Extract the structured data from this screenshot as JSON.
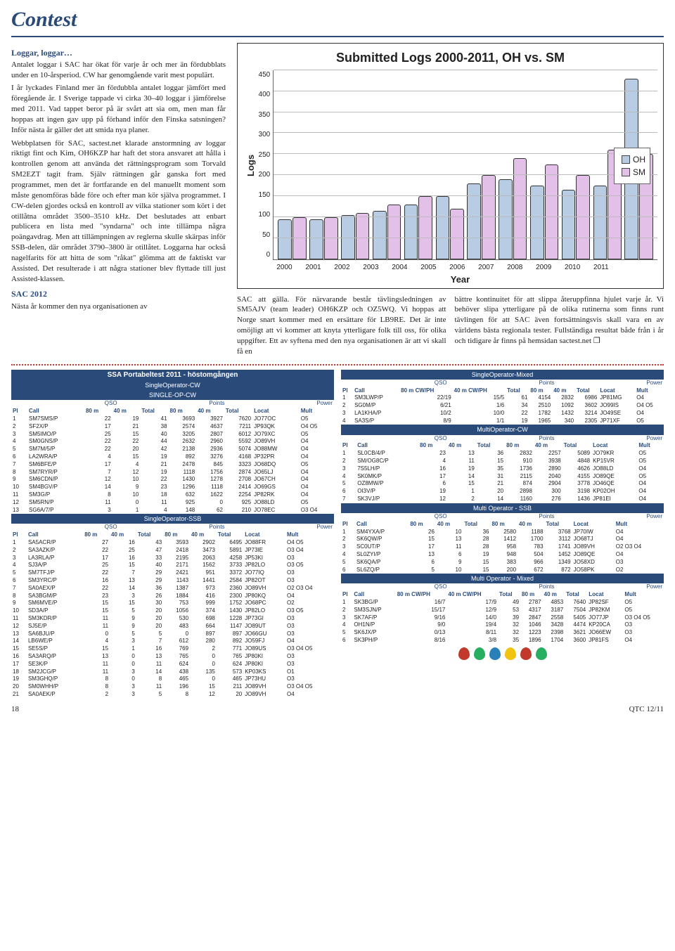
{
  "section_title": "Contest",
  "article": {
    "h1": "Loggar, loggar…",
    "p1": "Antalet loggar i SAC har ökat för varje år och mer än fördubblats under en 10-årsperiod. CW har genomgående varit mest populärt.",
    "p2": "I år lyckades Finland mer än fördubbla antalet loggar jämfört med föregående år. I Sverige tappade vi cirka 30–40 loggar i jämförelse med 2011. Vad tappet beror på är svårt att sia om, men man får hoppas att ingen gav upp på förhand inför den Finska satsningen? Inför nästa år gäller det att smida nya planer.",
    "p3": "Webbplatsen för SAC, sactest.net klarade anstormning av loggar riktigt fint och Kim, OH6KZP har haft det stora ansvaret att hålla i kontrollen genom att använda det rättningsprogram som Torvald SM2EZT tagit fram. Själv rättningen går ganska fort med programmet, men det är fortfarande en del manuellt moment som måste genomföras både före och efter man kör själva programmet. I CW-delen gjordes också en kontroll av vilka stationer som kört i det otillåtna området 3500–3510 kHz. Det beslutades att enbart publicera en lista med \"syndarna\" och inte tillämpa några poängavdrag. Men att tillämpningen av reglerna skulle skärpas inför SSB-delen, där området 3790–3800 är otillåtet. Loggarna har också nagelfarits för att hitta de som \"råkat\" glömma att de faktiskt var Assisted. Det resulterade i att några stationer blev flyttade till just Assisted-klassen.",
    "h2": "SAC 2012",
    "p4": "Nästa år kommer den nya organisationen av",
    "col_mid": "SAC att gälla. För närvarande består tävlingsledningen av SM5AJV (team leader) OH6KZP och OZ5WQ. Vi hoppas att Norge snart kommer med en ersättare för LB9RE. Det är inte omöjligt att vi kommer att knyta ytterligare folk till oss, för olika uppgifter. Ett av syftena med den nya organisationen är att vi skall få en",
    "col_right": "bättre kontinuitet för att slippa återuppfinna hjulet varje år. Vi behöver slipa ytterligare på de olika rutinerna som finns runt tävlingen för att SAC även fortsättningsvis skall vara en av världens bästa regionala tester.\n\nFullständiga resultat både från i år och tidigare år finns på hemsidan sactest.net ❐"
  },
  "chart": {
    "title": "Submitted Logs 2000-2011, OH vs. SM",
    "ylabel": "Logs",
    "xlabel": "Year",
    "ymax": 450,
    "ytick_step": 50,
    "yticks": [
      "0",
      "50",
      "100",
      "150",
      "200",
      "250",
      "300",
      "350",
      "400",
      "450"
    ],
    "years": [
      "2000",
      "2001",
      "2002",
      "2003",
      "2004",
      "2005",
      "2006",
      "2007",
      "2008",
      "2009",
      "2010",
      "2011"
    ],
    "series": {
      "OH": {
        "color": "#b8cce4",
        "values": [
          95,
          95,
          105,
          115,
          130,
          150,
          180,
          190,
          175,
          165,
          175,
          430
        ]
      },
      "SM": {
        "color": "#e2c0e8",
        "values": [
          100,
          100,
          110,
          130,
          150,
          120,
          200,
          240,
          225,
          200,
          260,
          250
        ]
      }
    },
    "legend": [
      {
        "label": "OH",
        "color": "#b8cce4"
      },
      {
        "label": "SM",
        "color": "#e2c0e8"
      }
    ],
    "grid_color": "#bbbbbb",
    "border_color": "#333333"
  },
  "tables": {
    "header_main": "SSA Portabeltest 2011 - höstomgången",
    "sub_socw": "SingleOperator-CW",
    "sub_single": "SINGLE-OP-CW",
    "cols_cw": {
      "qso": "QSO",
      "pts": "Points",
      "pow": "Power"
    },
    "colnames": [
      "Pl",
      "Call",
      "80 m",
      "40 m",
      "Total",
      "80 m",
      "40 m",
      "Total",
      "Locat",
      "Mult"
    ],
    "cw_rows": [
      [
        "1",
        "SM7SMS/P",
        "22",
        "19",
        "41",
        "3693",
        "3927",
        "7620",
        "JO77OC",
        "O5"
      ],
      [
        "2",
        "SF2X/P",
        "17",
        "21",
        "38",
        "2574",
        "4637",
        "7211",
        "JP93QK",
        "O4 O5"
      ],
      [
        "3",
        "SM5IMO/P",
        "25",
        "15",
        "40",
        "3205",
        "2807",
        "6012",
        "JO79XC",
        "O5"
      ],
      [
        "4",
        "SM0GNS/P",
        "22",
        "22",
        "44",
        "2632",
        "2960",
        "5592",
        "JO89VH",
        "O4"
      ],
      [
        "5",
        "SM7M/5/P",
        "22",
        "20",
        "42",
        "2138",
        "2936",
        "5074",
        "JO88MW",
        "O4"
      ],
      [
        "6",
        "LA2WRA/P",
        "4",
        "15",
        "19",
        "892",
        "3276",
        "4168",
        "JP32PR",
        "O4"
      ],
      [
        "7",
        "SM6BFE/P",
        "17",
        "4",
        "21",
        "2478",
        "845",
        "3323",
        "JO68DQ",
        "O5"
      ],
      [
        "8",
        "SM7RYR/P",
        "7",
        "12",
        "19",
        "1118",
        "1756",
        "2874",
        "JO65LJ",
        "O4"
      ],
      [
        "9",
        "SM6CDN/P",
        "12",
        "10",
        "22",
        "1430",
        "1278",
        "2708",
        "JO67CH",
        "O4"
      ],
      [
        "10",
        "SM4BGV/P",
        "14",
        "9",
        "23",
        "1296",
        "1118",
        "2414",
        "JO69GS",
        "O4"
      ],
      [
        "11",
        "SM3G/P",
        "8",
        "10",
        "18",
        "632",
        "1622",
        "2254",
        "JP82RK",
        "O4"
      ],
      [
        "12",
        "SM5RN/P",
        "11",
        "0",
        "11",
        "925",
        "0",
        "925",
        "JO88LD",
        "O5"
      ],
      [
        "13",
        "SG6A/7/P",
        "3",
        "1",
        "4",
        "148",
        "62",
        "210",
        "JO78EC",
        "O3 O4"
      ]
    ],
    "sub_sossb": "SingleOperator-SSB",
    "ssb_rows": [
      [
        "1",
        "SA5ACR/P",
        "27",
        "16",
        "43",
        "3593",
        "2902",
        "6495",
        "JO88FR",
        "O4 O5"
      ],
      [
        "2",
        "SA3AZK/P",
        "22",
        "25",
        "47",
        "2418",
        "3473",
        "5891",
        "JP73IE",
        "O3 O4"
      ],
      [
        "3",
        "LA3RLA/P",
        "17",
        "16",
        "33",
        "2195",
        "2063",
        "4258",
        "JP53KI",
        "O3"
      ],
      [
        "4",
        "SJ3A/P",
        "25",
        "15",
        "40",
        "2171",
        "1562",
        "3733",
        "JP82LO",
        "O3 O5"
      ],
      [
        "5",
        "SM7TFJ/P",
        "22",
        "7",
        "29",
        "2421",
        "951",
        "3372",
        "JO77IQ",
        "O3"
      ],
      [
        "6",
        "SM3YRC/P",
        "16",
        "13",
        "29",
        "1143",
        "1441",
        "2584",
        "JP82OT",
        "O3"
      ],
      [
        "7",
        "SA0AEX/P",
        "22",
        "14",
        "36",
        "1387",
        "973",
        "2360",
        "JO89VH",
        "O2 O3 O4"
      ],
      [
        "8",
        "SA3BGM/P",
        "23",
        "3",
        "26",
        "1884",
        "416",
        "2300",
        "JP80KQ",
        "O4"
      ],
      [
        "9",
        "SM6MVE/P",
        "15",
        "15",
        "30",
        "753",
        "999",
        "1752",
        "JO68PC",
        "O2"
      ],
      [
        "10",
        "SD3A/P",
        "15",
        "5",
        "20",
        "1056",
        "374",
        "1430",
        "JP82LO",
        "O3 O5"
      ],
      [
        "11",
        "SM3KDR/P",
        "11",
        "9",
        "20",
        "530",
        "698",
        "1228",
        "JP73GI",
        "O3"
      ],
      [
        "12",
        "SJ5E/P",
        "11",
        "9",
        "20",
        "483",
        "664",
        "1147",
        "JO89UT",
        "O3"
      ],
      [
        "13",
        "SA6BJU/P",
        "0",
        "5",
        "5",
        "0",
        "897",
        "897",
        "JO66GU",
        "O3"
      ],
      [
        "14",
        "LB6WE/P",
        "4",
        "3",
        "7",
        "612",
        "280",
        "892",
        "JO59FJ",
        "O4"
      ],
      [
        "15",
        "SE5S/P",
        "15",
        "1",
        "16",
        "769",
        "2",
        "771",
        "JO89US",
        "O3 O4 O5"
      ],
      [
        "16",
        "SA3ARQ/P",
        "13",
        "0",
        "13",
        "765",
        "0",
        "765",
        "JP80KI",
        "O3"
      ],
      [
        "17",
        "SE3K/P",
        "11",
        "0",
        "11",
        "624",
        "0",
        "624",
        "JP80KI",
        "O3"
      ],
      [
        "18",
        "SM2JCG/P",
        "11",
        "3",
        "14",
        "438",
        "135",
        "573",
        "KP03KS",
        "O1"
      ],
      [
        "19",
        "SM3GHQ/P",
        "8",
        "0",
        "8",
        "465",
        "0",
        "465",
        "JP73HU",
        "O3"
      ],
      [
        "20",
        "SM0WHH/P",
        "8",
        "3",
        "11",
        "196",
        "15",
        "211",
        "JO89VH",
        "O3 O4 O5"
      ],
      [
        "21",
        "SA0AEK/P",
        "2",
        "3",
        "5",
        "8",
        "12",
        "20",
        "JO89VH",
        "O4"
      ]
    ],
    "sub_mixed": "SingleOperator-Mixed",
    "col_mixed": [
      "Pl",
      "Call",
      "80 m CW/PH",
      "40 m CW/PH",
      "Total",
      "80 m",
      "40 m",
      "Total",
      "Locat",
      "Mult"
    ],
    "mixed_rows": [
      [
        "1",
        "SM3LWP/P",
        "22/19",
        "15/5",
        "61",
        "4154",
        "2832",
        "6986",
        "JP81MG",
        "O4"
      ],
      [
        "2",
        "SG0M/P",
        "6/21",
        "1/6",
        "34",
        "2510",
        "1092",
        "3602",
        "JO99IS",
        "O4 O5"
      ],
      [
        "3",
        "LA1KHA/P",
        "10/2",
        "10/0",
        "22",
        "1782",
        "1432",
        "3214",
        "JO49SE",
        "O4"
      ],
      [
        "4",
        "SA3S/P",
        "8/9",
        "1/1",
        "19",
        "1965",
        "340",
        "2305",
        "JP71XF",
        "O5"
      ]
    ],
    "sub_mocw": "MultiOperator-CW",
    "mocw_rows": [
      [
        "1",
        "SL0CB/4/P",
        "23",
        "13",
        "36",
        "2832",
        "2257",
        "5089",
        "JO79KR",
        "O5"
      ],
      [
        "2",
        "SM/OG8C/P",
        "4",
        "11",
        "15",
        "910",
        "3938",
        "4848",
        "KP15VR",
        "O5"
      ],
      [
        "3",
        "7S5LH/P",
        "16",
        "19",
        "35",
        "1736",
        "2890",
        "4626",
        "JO88LD",
        "O4"
      ],
      [
        "4",
        "SK0MK/P",
        "17",
        "14",
        "31",
        "2115",
        "2040",
        "4155",
        "JO89QE",
        "O5"
      ],
      [
        "5",
        "OZ8MW/P",
        "6",
        "15",
        "21",
        "874",
        "2904",
        "3778",
        "JO46QE",
        "O4"
      ],
      [
        "6",
        "OI3V/P",
        "19",
        "1",
        "20",
        "2898",
        "300",
        "3198",
        "KP02OH",
        "O4"
      ],
      [
        "7",
        "SK3VJ/P",
        "12",
        "2",
        "14",
        "1160",
        "276",
        "1436",
        "JP81EI",
        "O4"
      ]
    ],
    "sub_mossb": "Multi Operator - SSB",
    "mossb_rows": [
      [
        "1",
        "SM4YXA/P",
        "26",
        "10",
        "36",
        "2580",
        "1188",
        "3768",
        "JP70IW",
        "O4"
      ],
      [
        "2",
        "SK6QW/P",
        "15",
        "13",
        "28",
        "1412",
        "1700",
        "3112",
        "JO68TJ",
        "O4"
      ],
      [
        "3",
        "SC0UT/P",
        "17",
        "11",
        "28",
        "958",
        "783",
        "1741",
        "JO89VH",
        "O2 O3 O4"
      ],
      [
        "4",
        "SL0ZYI/P",
        "13",
        "6",
        "19",
        "948",
        "504",
        "1452",
        "JO89QE",
        "O4"
      ],
      [
        "5",
        "SK6QA/P",
        "6",
        "9",
        "15",
        "383",
        "966",
        "1349",
        "JO58XD",
        "O3"
      ],
      [
        "6",
        "SL6ZQ/P",
        "5",
        "10",
        "15",
        "200",
        "672",
        "872",
        "JO58PK",
        "O2"
      ]
    ],
    "sub_momix": "Multi Operator - Mixed",
    "momix_rows": [
      [
        "1",
        "SK3BG/P",
        "16/7",
        "17/9",
        "49",
        "2787",
        "4853",
        "7640",
        "JP82SF",
        "O5"
      ],
      [
        "2",
        "SM3SJN/P",
        "15/17",
        "12/9",
        "53",
        "4317",
        "3187",
        "7504",
        "JP82KM",
        "O5"
      ],
      [
        "3",
        "SK7AF/P",
        "9/16",
        "14/0",
        "39",
        "2847",
        "2558",
        "5405",
        "JO77JP",
        "O3 O4 O5"
      ],
      [
        "4",
        "OH1N/P",
        "9/0",
        "19/4",
        "32",
        "1046",
        "3428",
        "4474",
        "KP20CA",
        "O3"
      ],
      [
        "5",
        "SK6JX/P",
        "0/13",
        "8/11",
        "32",
        "1223",
        "2398",
        "3621",
        "JO66EW",
        "O3"
      ],
      [
        "6",
        "SK3PH/P",
        "8/16",
        "3/8",
        "35",
        "1896",
        "1704",
        "3600",
        "JP81FS",
        "O4"
      ]
    ]
  },
  "decorations": {
    "bell_colors": [
      "#c0392b",
      "#27ae60",
      "#2980b9",
      "#f1c40f",
      "#c0392b",
      "#27ae60"
    ]
  },
  "footer": {
    "page": "18",
    "issue": "QTC 12/11"
  }
}
